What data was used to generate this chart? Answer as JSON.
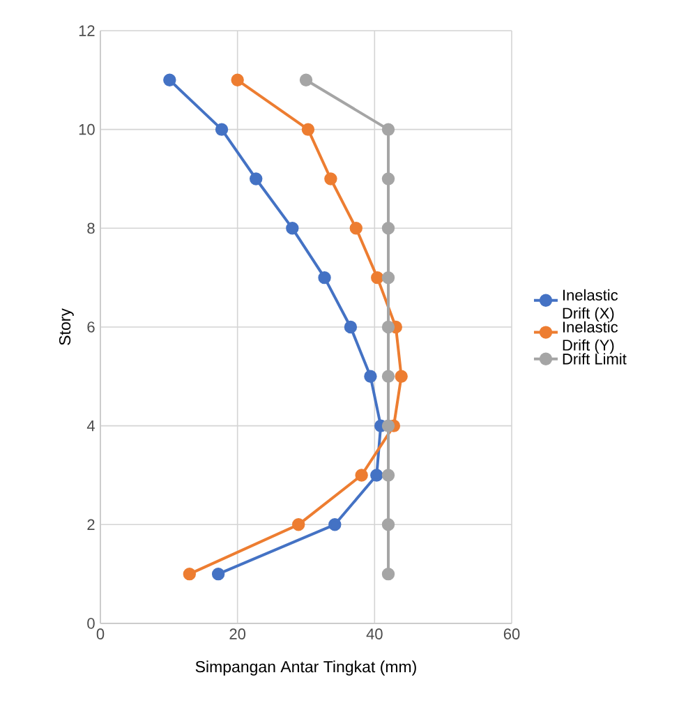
{
  "chart_data": {
    "type": "line",
    "xlabel": "Simpangan Antar Tingkat (mm)",
    "ylabel": "Story",
    "xlim": [
      0,
      60
    ],
    "xticks": [
      0,
      20,
      40,
      60
    ],
    "ylim": [
      0,
      12
    ],
    "yticks": [
      0,
      2,
      4,
      6,
      8,
      10,
      12
    ],
    "grid": true,
    "legend": "right",
    "marker": "circle",
    "line_style": "solid",
    "series": [
      {
        "name": "Inelastic Drift (X)",
        "color": "#4472c4",
        "x": [
          10.1,
          17.7,
          22.7,
          28.0,
          32.7,
          36.5,
          39.4,
          40.9,
          40.3,
          34.2,
          17.2
        ],
        "values": [
          11,
          10,
          9,
          8,
          7,
          6,
          5,
          4,
          3,
          2,
          1
        ]
      },
      {
        "name": "Inelastic Drift (Y)",
        "color": "#ed7d31",
        "x": [
          20.0,
          30.3,
          33.6,
          37.3,
          40.4,
          43.1,
          43.9,
          42.8,
          38.1,
          28.9,
          13.0
        ],
        "values": [
          11,
          10,
          9,
          8,
          7,
          6,
          5,
          4,
          3,
          2,
          1
        ]
      },
      {
        "name": "Drift Limit",
        "color": "#a5a5a5",
        "x": [
          30.0,
          42.0,
          42.0,
          42.0,
          42.0,
          42.0,
          42.0,
          42.0,
          42.0,
          42.0,
          42.0
        ],
        "values": [
          11,
          10,
          9,
          8,
          7,
          6,
          5,
          4,
          3,
          2,
          1
        ]
      }
    ]
  }
}
